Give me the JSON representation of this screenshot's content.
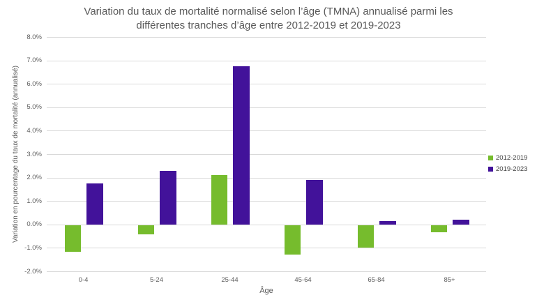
{
  "chart_data": {
    "type": "bar",
    "title": "Variation du taux de mortalité normalisé selon l’âge (TMNA) annualisé parmi les différentes tranches d’âge entre 2012-2019 et 2019-2023",
    "xlabel": "Âge",
    "ylabel": "Variation en pourcentage du taux de mortalité (annualisé)",
    "categories": [
      "0-4",
      "5-24",
      "25-44",
      "45-64",
      "65-84",
      "85+"
    ],
    "series": [
      {
        "name": "2012-2019",
        "color": "#76bc2d",
        "values": [
          -1.15,
          -0.4,
          2.1,
          -1.25,
          -0.95,
          -0.3
        ]
      },
      {
        "name": "2019-2023",
        "color": "#42129a",
        "values": [
          1.75,
          2.3,
          6.75,
          1.9,
          0.15,
          0.2
        ]
      }
    ],
    "ylim": [
      -2.0,
      8.0
    ],
    "y_tick_labels": [
      "8.0%",
      "7.0%",
      "6.0%",
      "5.0%",
      "4.0%",
      "3.0%",
      "2.0%",
      "1.0%",
      "0.0%",
      "-1.0%",
      "-2.0%"
    ],
    "y_tick_values": [
      8,
      7,
      6,
      5,
      4,
      3,
      2,
      1,
      0,
      -1,
      -2
    ],
    "grid": true,
    "legend_position": "right",
    "colors": {
      "background": "#ffffff",
      "gridline": "#d9d9d9",
      "title_text": "#595959",
      "tick_text": "#5f5f5f",
      "legend_text": "#404040"
    }
  }
}
